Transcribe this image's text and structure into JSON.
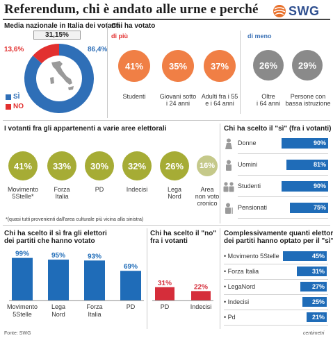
{
  "header": {
    "title": "Referendum, chi è andato alle urne e perché",
    "brand": "SWG",
    "logo_icon": "swg-logo-icon"
  },
  "colors": {
    "orange": "#f07f45",
    "grey": "#8a8a8a",
    "olive": "#a6ac35",
    "blue": "#1f6cb8",
    "red": "#d52d3a",
    "si_blue": "#2f6fb7",
    "no_red": "#e2302f"
  },
  "media": {
    "title": "Media nazionale in Italia dei votanti",
    "turnout_label": "31,15%",
    "no_pct_label": "13,6%",
    "si_pct_label": "86,4%",
    "legend_si": "SÌ",
    "legend_no": "NO"
  },
  "chi_ha_votato": {
    "title": "Chi ha votato",
    "di_piu": "di più",
    "di_meno": "di meno",
    "di_piu_items": [
      {
        "value": "41%",
        "label": "Studenti"
      },
      {
        "value": "35%",
        "label": "Giovani sotto\ni 24 anni"
      },
      {
        "value": "37%",
        "label": "Adulti fra i 55\ne i 64 anni"
      }
    ],
    "di_meno_items": [
      {
        "value": "26%",
        "label": "Oltre\ni 64 anni"
      },
      {
        "value": "29%",
        "label": "Persone con\nbassa istruzione"
      }
    ]
  },
  "aree": {
    "title": "I votanti fra gli appartenenti a varie aree elettorali",
    "note": "*(quasi tutti provenienti dall'area culturale più vicina alla sinistra)",
    "items": [
      {
        "value": "41%",
        "label": "Movimento\n5Stelle*"
      },
      {
        "value": "33%",
        "label": "Forza\nItalia"
      },
      {
        "value": "30%",
        "label": "PD"
      },
      {
        "value": "32%",
        "label": "Indecisi"
      },
      {
        "value": "26%",
        "label": "Lega\nNord"
      },
      {
        "value": "16%",
        "label": "Area\nnon voto\ncronico"
      }
    ]
  },
  "chi_si": {
    "title": "Chi ha scelto il \"sì\" (fra i votanti)",
    "icons": [
      "woman-icon",
      "man-icon",
      "students-icon",
      "pensioner-icon"
    ]
  },
  "si_elettori": {
    "title_line1": "Chi ha scelto il sì fra gli elettori",
    "title_line2": "dei partiti che hanno votato"
  },
  "no_votanti": {
    "title_line1": "Chi ha scelto il \"no\"",
    "title_line2": "fra i votanti"
  },
  "complessivamente": {
    "title_line1": "Complessivamente quanti elettori",
    "title_line2": "dei partiti hanno optato per il \"sì\""
  },
  "footer": {
    "source": "Fonte: SWG",
    "credit": "centimetri"
  },
  "chart_data": [
    {
      "type": "pie",
      "title": "Media nazionale in Italia dei votanti",
      "categories": [
        "SÌ",
        "NO"
      ],
      "values": [
        86.4,
        13.6
      ],
      "annotations": [
        "31,15%"
      ]
    },
    {
      "type": "bar",
      "orientation": "horizontal",
      "title": "Chi ha scelto il \"sì\" (fra i votanti)",
      "categories": [
        "Donne",
        "Uomini",
        "Studenti",
        "Pensionati"
      ],
      "values": [
        90,
        81,
        90,
        75
      ],
      "xlim": [
        0,
        100
      ]
    },
    {
      "type": "bar",
      "title": "Chi ha scelto il sì fra gli elettori dei partiti che hanno votato",
      "categories": [
        "Movimento\n5Stelle",
        "Lega\nNord",
        "Forza\nItalia",
        "PD"
      ],
      "values": [
        99,
        95,
        93,
        69
      ],
      "ylim": [
        0,
        100
      ]
    },
    {
      "type": "bar",
      "title": "Chi ha scelto il \"no\" fra i votanti",
      "categories": [
        "PD",
        "Indecisi"
      ],
      "values": [
        31,
        22
      ],
      "ylim": [
        0,
        100
      ]
    },
    {
      "type": "bar",
      "orientation": "horizontal",
      "title": "Complessivamente quanti elettori dei partiti hanno optato per il \"sì\"",
      "categories": [
        "Movimento 5Stelle",
        "Forza Italia",
        "LegaNord",
        "Indecisi",
        "Pd"
      ],
      "values": [
        45,
        31,
        27,
        25,
        21
      ],
      "xlim": [
        0,
        50
      ]
    }
  ]
}
